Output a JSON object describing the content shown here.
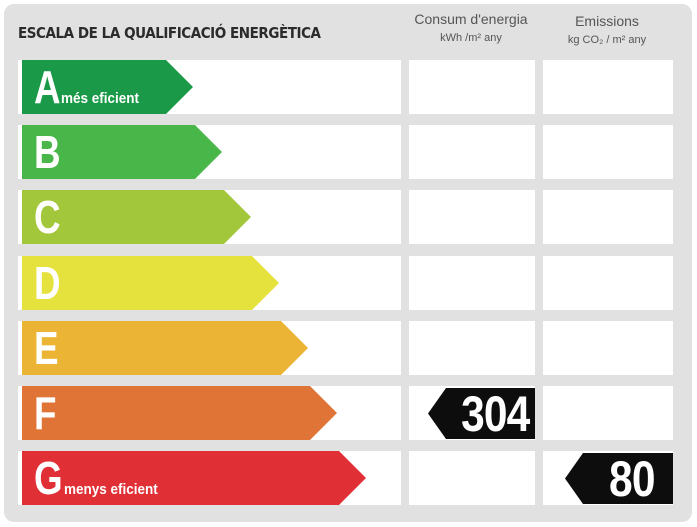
{
  "title": "ESCALA DE LA QUALIFICACIÓ ENERGÈTICA",
  "columns": {
    "consum": {
      "label": "Consum d'energia",
      "unit": "kWh /m² any"
    },
    "emissions": {
      "label": "Emissions",
      "unit": "kg CO₂ / m² any"
    }
  },
  "rows": [
    {
      "letter": "A",
      "sublabel": "més eficient",
      "color": "#1a9a48"
    },
    {
      "letter": "B",
      "sublabel": "",
      "color": "#49b649"
    },
    {
      "letter": "C",
      "sublabel": "",
      "color": "#a2c73b"
    },
    {
      "letter": "D",
      "sublabel": "",
      "color": "#e6e23d"
    },
    {
      "letter": "E",
      "sublabel": "",
      "color": "#ecb434"
    },
    {
      "letter": "F",
      "sublabel": "",
      "color": "#e07436"
    },
    {
      "letter": "G",
      "sublabel": "menys eficient",
      "color": "#e12f36"
    }
  ],
  "rating": {
    "consum": {
      "class": "F",
      "value": "304"
    },
    "emissions": {
      "class": "G",
      "value": "80"
    }
  }
}
